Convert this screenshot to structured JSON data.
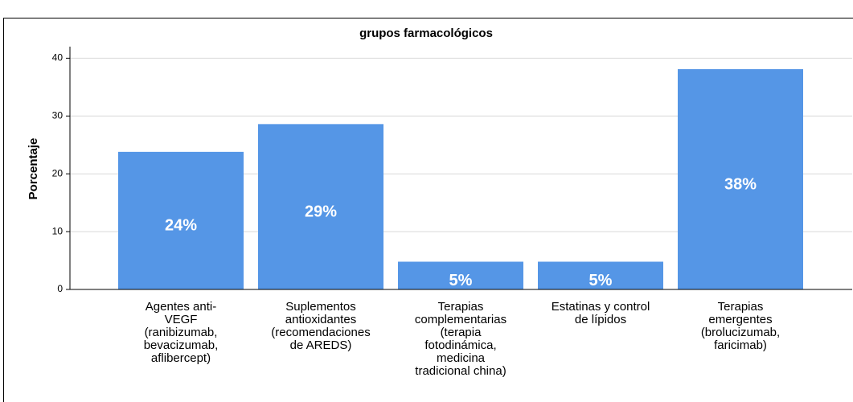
{
  "chart_data": {
    "type": "bar",
    "title": "grupos farmacológicos",
    "y_label": "Porcentaje",
    "categories": [
      "Agentes anti-\nVEGF\n(ranibizumab,\nbevacizumab,\naflibercept)",
      "Suplementos\nantioxidantes\n(recomendaciones\nde AREDS)",
      "Terapias\ncomplementarias\n(terapia\nfotodinámica,\nmedicina\ntradicional china)",
      "Estatinas y control\nde lípidos",
      "Terapias\nemergentes\n(brolucizumab,\nfaricimab)"
    ],
    "values": [
      23.8,
      28.6,
      4.8,
      4.8,
      38.1
    ],
    "value_labels": [
      "24%",
      "29%",
      "5%",
      "5%",
      "38%"
    ],
    "color": "#5596e6",
    "ylim": [
      0,
      42
    ],
    "yticks": [
      0,
      10,
      20,
      30,
      40
    ],
    "grid": true
  }
}
